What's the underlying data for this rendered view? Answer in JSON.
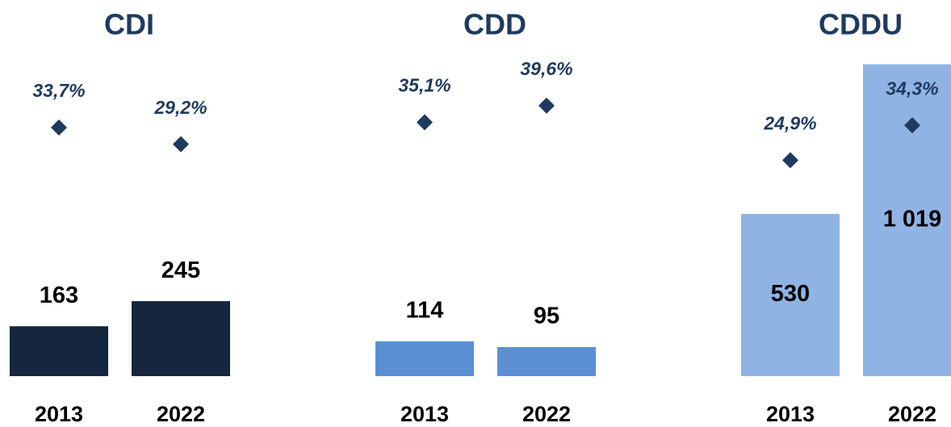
{
  "chart_data": [
    {
      "type": "bar",
      "title": "CDI",
      "categories": [
        "2013",
        "2022"
      ],
      "ylim": [
        0,
        1200
      ],
      "y2lim": [
        0,
        60
      ],
      "series": [
        {
          "color": "#14273f",
          "values": [
            163,
            245
          ]
        },
        {
          "color": "#1f3a5f",
          "axis": "y2",
          "values": [
            33.7,
            29.2
          ],
          "value_labels": [
            "33,7%",
            "29,2%"
          ]
        }
      ]
    },
    {
      "type": "bar",
      "title": "CDD",
      "categories": [
        "2013",
        "2022"
      ],
      "ylim": [
        0,
        1200
      ],
      "y2lim": [
        0,
        60
      ],
      "series": [
        {
          "color": "#5b8fd4",
          "values": [
            114,
            95
          ]
        },
        {
          "color": "#1f3a5f",
          "axis": "y2",
          "values": [
            35.1,
            39.6
          ],
          "value_labels": [
            "35,1%",
            "39,6%"
          ]
        }
      ]
    },
    {
      "type": "bar",
      "title": "CDDU",
      "categories": [
        "2013",
        "2022"
      ],
      "ylim": [
        0,
        1200
      ],
      "y2lim": [
        0,
        60
      ],
      "series": [
        {
          "color": "#8fb4e3",
          "values": [
            530,
            1019
          ],
          "value_labels": [
            "530",
            "1 019"
          ]
        },
        {
          "color": "#1f3a5f",
          "axis": "y2",
          "values": [
            24.9,
            34.3
          ],
          "value_labels": [
            "24,9%",
            "34,3%"
          ]
        }
      ]
    }
  ]
}
